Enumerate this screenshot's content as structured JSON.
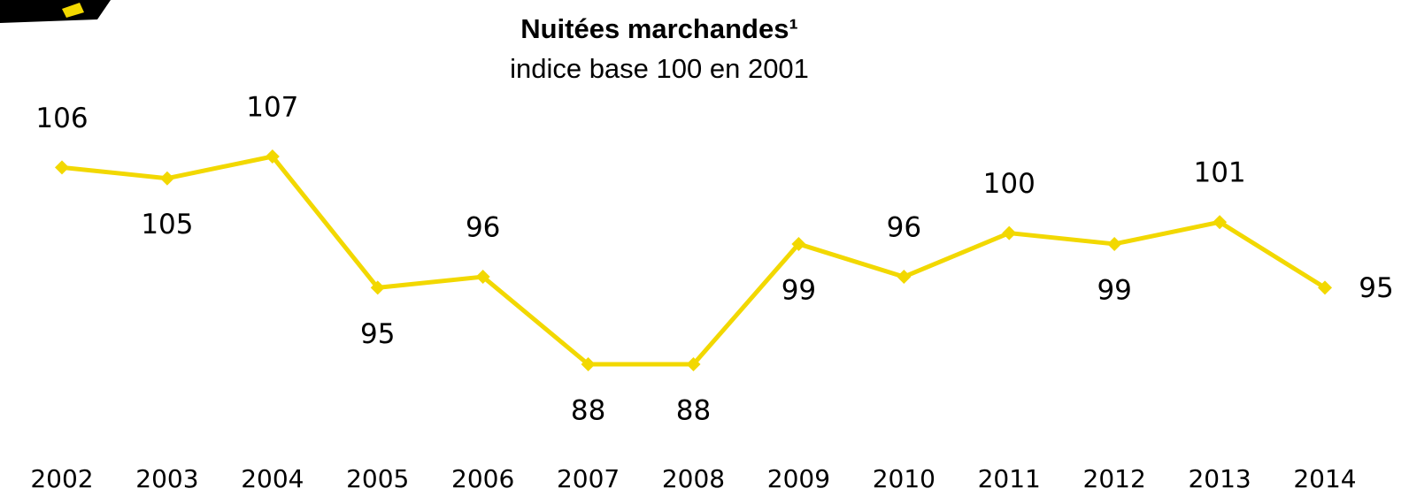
{
  "chart_data": {
    "type": "line",
    "title": "Nuitées marchandes¹",
    "subtitle": "indice base 100 en 2001",
    "categories": [
      "2002",
      "2003",
      "2004",
      "2005",
      "2006",
      "2007",
      "2008",
      "2009",
      "2010",
      "2011",
      "2012",
      "2013",
      "2014"
    ],
    "series": [
      {
        "name": "Nuitées marchandes",
        "color": "#f2d800",
        "values": [
          106,
          105,
          107,
          95,
          96,
          88,
          88,
          99,
          96,
          100,
          99,
          101,
          95
        ]
      }
    ]
  }
}
